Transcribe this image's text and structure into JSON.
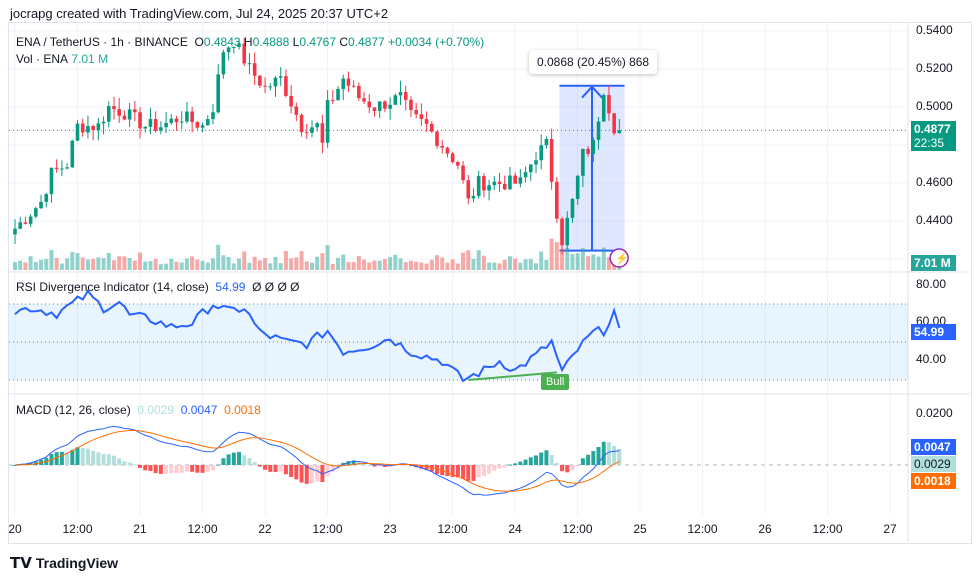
{
  "header": "jocrapg created with TradingView.com, Jul 24, 2025 20:37 UTC+2",
  "legend": {
    "symbol": "ENA / TetherUS · 1h · BINANCE",
    "o_label": "O",
    "o": "0.4843",
    "h_label": "H",
    "h": "0.4888",
    "l_label": "L",
    "l": "0.4767",
    "c_label": "C",
    "c": "0.4877",
    "change": "+0.0034 (+0.70%)",
    "vol_label": "Vol · ENA",
    "vol": "7.01 M"
  },
  "price_tag": {
    "price": "0.4877",
    "countdown": "22:35"
  },
  "volume_tag": "7.01 M",
  "measure_label": "0.0868 (20.45%) 868",
  "rsi": {
    "label": "RSI Divergence Indicator (14, close)",
    "value": "54.99",
    "extras": "Ø  Ø  Ø  Ø",
    "bull_label": "Bull",
    "ticks": [
      "80.00",
      "60.00",
      "40.00"
    ]
  },
  "macd": {
    "label": "MACD (12, 26, close)",
    "hist": "0.0029",
    "macd": "0.0047",
    "signal": "0.0018",
    "ticks": [
      "0.0200"
    ]
  },
  "colors": {
    "up": "#089981",
    "down": "#f23645",
    "rsi": "#2962ff",
    "signal": "#ff6d00",
    "hist_up": "#26a69a",
    "hist_down": "#ff5252"
  },
  "footer": "TradingView",
  "chart_data": {
    "type": "candlestick",
    "title": "ENA / TetherUS 1h",
    "ylim": [
      0.42,
      0.545
    ],
    "price_ticks": [
      "0.5400",
      "0.5200",
      "0.5000",
      "0.4600",
      "0.4400"
    ],
    "x_ticks": [
      "20",
      "12:00",
      "21",
      "12:00",
      "22",
      "12:00",
      "23",
      "12:00",
      "24",
      "12:00",
      "25",
      "12:00",
      "26",
      "12:00",
      "27"
    ],
    "close_keypoints_hour_price": [
      [
        0,
        0.436
      ],
      [
        5,
        0.45
      ],
      [
        7,
        0.465
      ],
      [
        10,
        0.47
      ],
      [
        12,
        0.49
      ],
      [
        16,
        0.49
      ],
      [
        18,
        0.5
      ],
      [
        21,
        0.497
      ],
      [
        25,
        0.49
      ],
      [
        28,
        0.49
      ],
      [
        32,
        0.495
      ],
      [
        36,
        0.49
      ],
      [
        38,
        0.5
      ],
      [
        40,
        0.53
      ],
      [
        42,
        0.535
      ],
      [
        45,
        0.52
      ],
      [
        48,
        0.51
      ],
      [
        51,
        0.515
      ],
      [
        55,
        0.49
      ],
      [
        58,
        0.49
      ],
      [
        59,
        0.48
      ],
      [
        60,
        0.5
      ],
      [
        63,
        0.515
      ],
      [
        66,
        0.505
      ],
      [
        69,
        0.5
      ],
      [
        74,
        0.505
      ],
      [
        76,
        0.495
      ],
      [
        79,
        0.49
      ],
      [
        82,
        0.48
      ],
      [
        85,
        0.47
      ],
      [
        87,
        0.45
      ],
      [
        89,
        0.46
      ],
      [
        93,
        0.46
      ],
      [
        97,
        0.46
      ],
      [
        100,
        0.475
      ],
      [
        102,
        0.48
      ],
      [
        104,
        0.445
      ],
      [
        105,
        0.43
      ],
      [
        107,
        0.45
      ],
      [
        109,
        0.475
      ],
      [
        111,
        0.48
      ],
      [
        113,
        0.51
      ],
      [
        114,
        0.5
      ],
      [
        115,
        0.49
      ],
      [
        116,
        0.4877
      ]
    ],
    "rsi_keypoints_hour_value": [
      [
        0,
        66
      ],
      [
        3,
        68
      ],
      [
        8,
        65
      ],
      [
        14,
        75
      ],
      [
        17,
        68
      ],
      [
        20,
        71
      ],
      [
        22,
        64
      ],
      [
        26,
        62
      ],
      [
        30,
        58
      ],
      [
        34,
        60
      ],
      [
        38,
        70
      ],
      [
        41,
        66
      ],
      [
        44,
        68
      ],
      [
        47,
        55
      ],
      [
        52,
        50
      ],
      [
        56,
        49
      ],
      [
        60,
        56
      ],
      [
        63,
        45
      ],
      [
        68,
        48
      ],
      [
        72,
        52
      ],
      [
        76,
        45
      ],
      [
        82,
        40
      ],
      [
        86,
        30
      ],
      [
        90,
        35
      ],
      [
        93,
        40
      ],
      [
        96,
        35
      ],
      [
        100,
        43
      ],
      [
        103,
        50
      ],
      [
        105,
        34
      ],
      [
        108,
        46
      ],
      [
        111,
        55
      ],
      [
        113,
        56
      ],
      [
        115,
        66
      ],
      [
        116,
        55
      ],
      [
        118,
        55
      ]
    ],
    "measure": {
      "from": 0.4244,
      "to": 0.5112,
      "change": 0.0868,
      "percent": 20.45,
      "bars": 868
    }
  }
}
